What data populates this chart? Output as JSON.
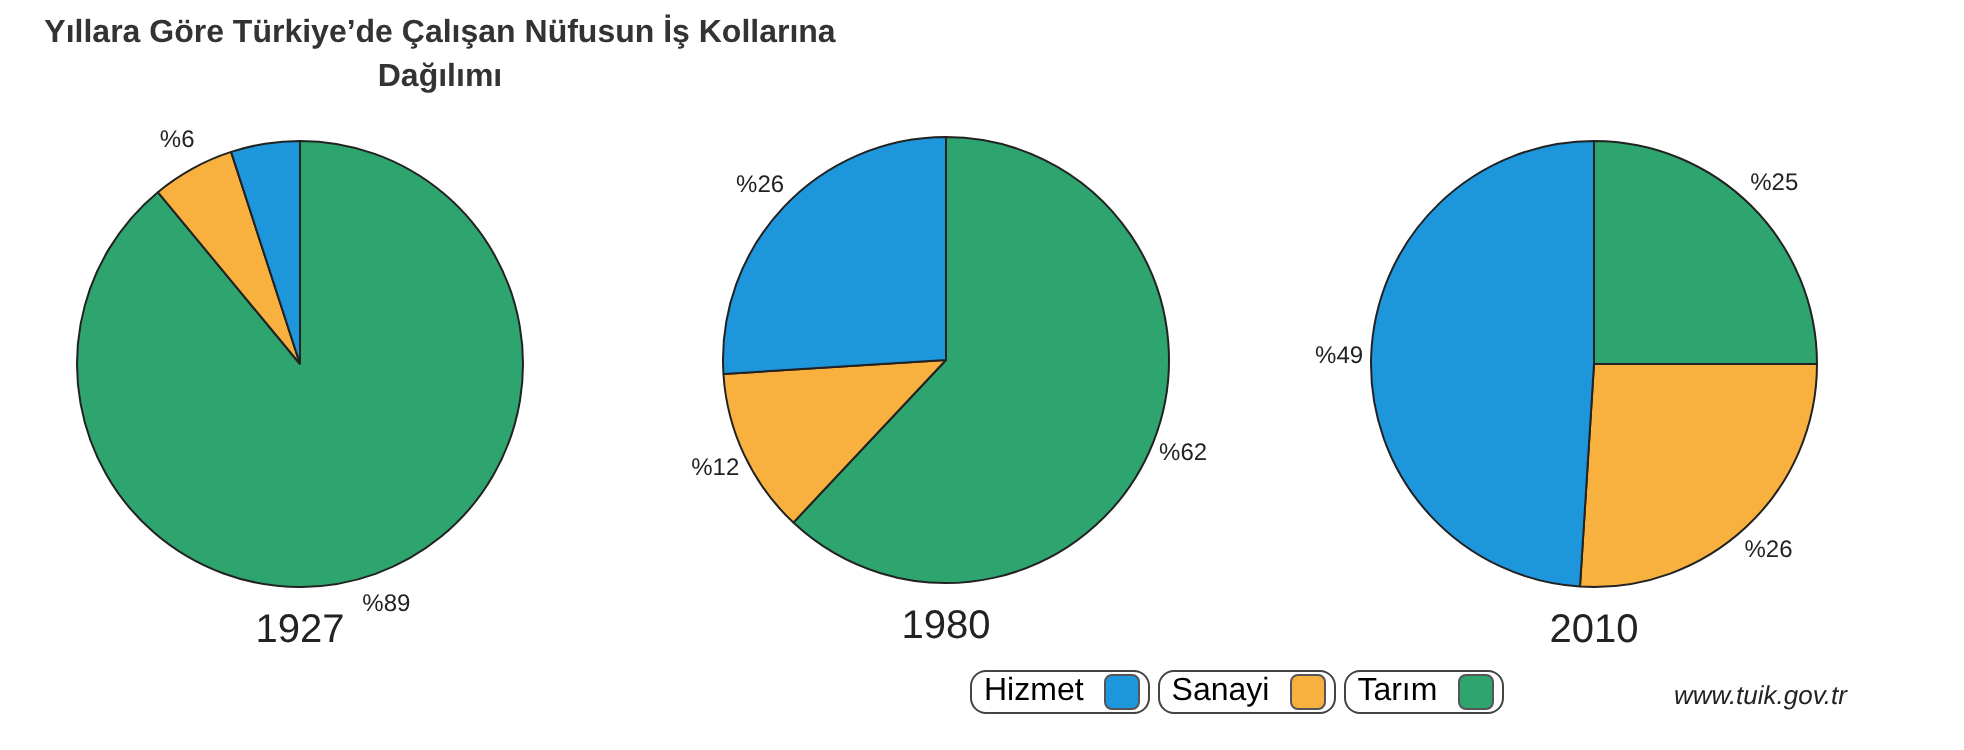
{
  "chart_data": [
    {
      "type": "pie",
      "title": "Yıllara Göre Türkiye’de Çalışan Nüfusun İş Kollarına Dağılımı",
      "xlabel": "1927",
      "categories": [
        null,
        null,
        null
      ],
      "values": [
        89,
        6,
        5
      ],
      "colors": [
        "#2ea56e",
        "#f8b13e",
        "#1e96dc"
      ],
      "value_labels": [
        "%89",
        "%6",
        null
      ]
    },
    {
      "type": "pie",
      "xlabel": "1980",
      "categories": [
        null,
        null,
        null
      ],
      "values": [
        62,
        12,
        26
      ],
      "colors": [
        "#2ea56e",
        "#f8b13e",
        "#1e96dc"
      ],
      "value_labels": [
        "%62",
        "%12",
        "%26"
      ]
    },
    {
      "type": "pie",
      "xlabel": "2010",
      "categories": [
        "Tarım",
        "Sanayi",
        "Hizmet"
      ],
      "values": [
        25,
        26,
        49
      ],
      "colors": [
        "#2ea56e",
        "#f8b13e",
        "#1e96dc"
      ],
      "value_labels": [
        "%25",
        "%26",
        "%49"
      ],
      "legend": "bottom",
      "annotations": [
        "www.tuik.gov.tr"
      ]
    }
  ]
}
